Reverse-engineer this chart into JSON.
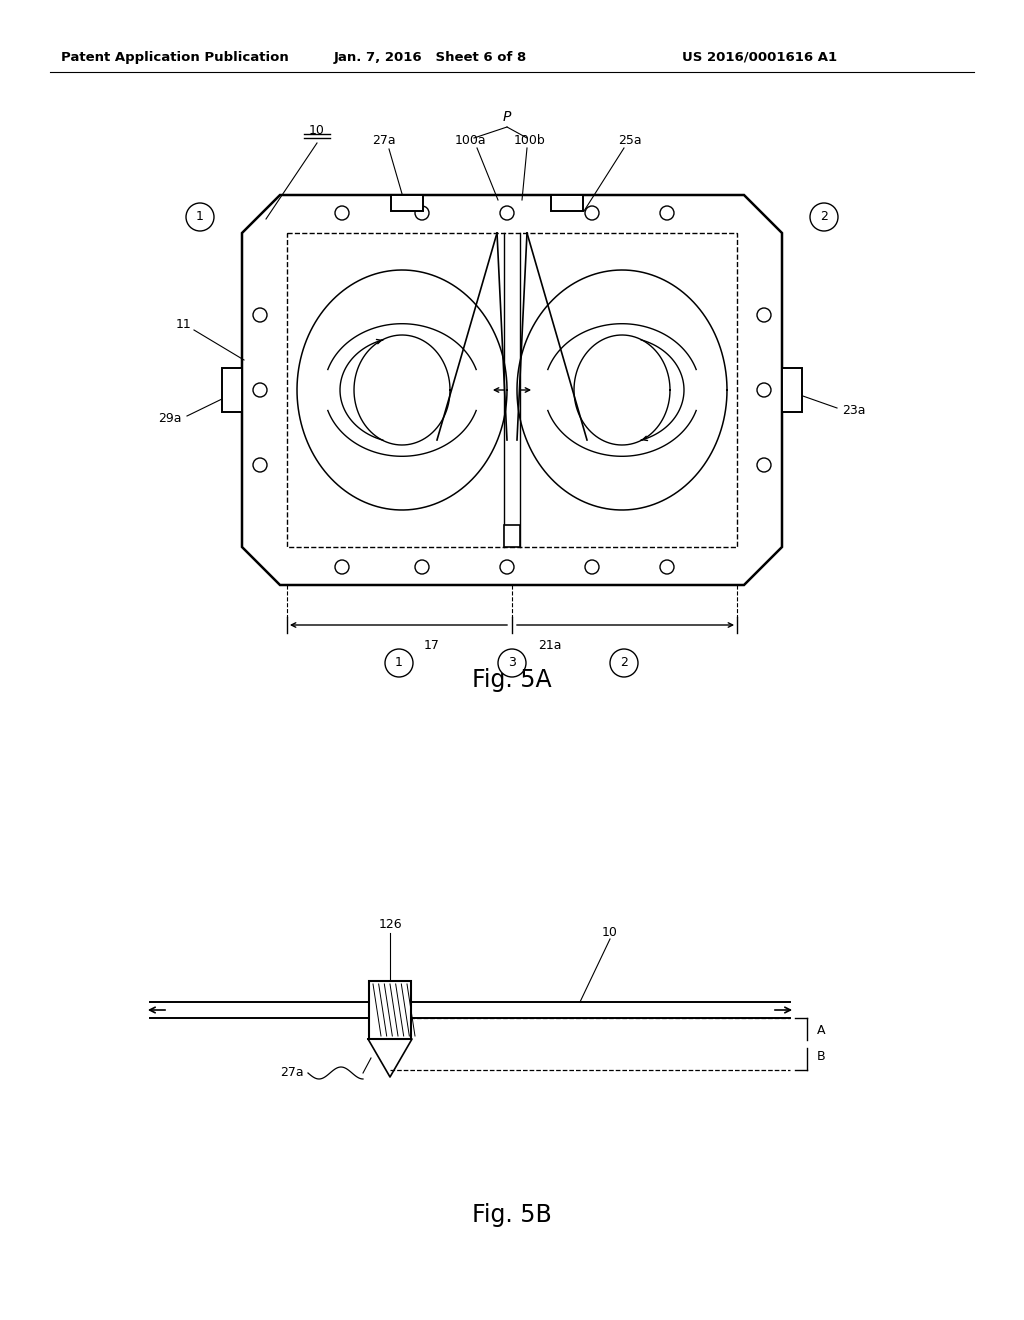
{
  "bg_color": "#ffffff",
  "line_color": "#000000",
  "header_left": "Patent Application Publication",
  "header_center": "Jan. 7, 2016   Sheet 6 of 8",
  "header_right": "US 2016/0001616 A1",
  "fig5a_label": "Fig. 5A",
  "fig5b_label": "Fig. 5B"
}
